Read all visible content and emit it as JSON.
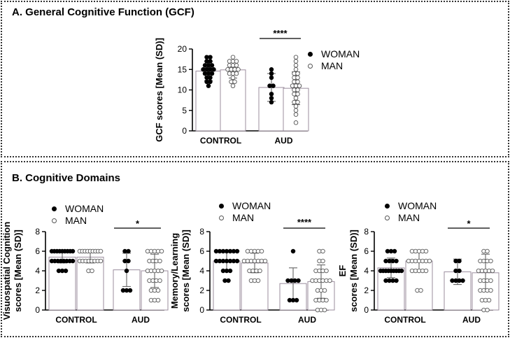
{
  "panel_a": {
    "title": "A. General Cognitive Function (GCF)"
  },
  "panel_b": {
    "title": "B. Cognitive Domains"
  },
  "legend": {
    "woman": "WOMAN",
    "man": "MAN"
  },
  "colors": {
    "woman": "#000000",
    "man": "#ffffff",
    "bar_edge": "#9b8d9e"
  },
  "chart_data": [
    {
      "type": "bar",
      "panel": "A",
      "ylabel": "GCF scores [Mean (SD)]",
      "categories": [
        "CONTROL",
        "AUD"
      ],
      "ylim": [
        0,
        20
      ],
      "yticks": [
        0,
        5,
        10,
        15,
        20
      ],
      "significance": {
        "label": "****",
        "category": "AUD"
      },
      "series": [
        {
          "name": "WOMAN",
          "means": [
            14.6,
            10.6
          ],
          "sd": [
            2.3,
            3.4
          ],
          "points": [
            [
              18,
              18,
              17,
              17,
              16,
              16,
              16,
              15,
              15,
              15,
              15,
              14,
              14,
              14,
              13,
              13,
              12,
              12,
              11
            ],
            [
              15,
              14,
              13,
              11,
              11,
              9,
              8,
              7
            ]
          ]
        },
        {
          "name": "MAN",
          "means": [
            14.9,
            10.4
          ],
          "sd": [
            2.0,
            4.0
          ],
          "points": [
            [
              18,
              17,
              17,
              17,
              16,
              16,
              16,
              15,
              15,
              15,
              15,
              14,
              14,
              14,
              13,
              12,
              12,
              11
            ],
            [
              18,
              17,
              16,
              15,
              14,
              14,
              13,
              13,
              12,
              12,
              11,
              11,
              11,
              10,
              10,
              9,
              9,
              8,
              7,
              7,
              6,
              5,
              4,
              2
            ]
          ]
        }
      ]
    },
    {
      "type": "bar",
      "panel": "B1",
      "ylabel": "Visuospatial Cognition scores [Mean (SD)]",
      "categories": [
        "CONTROL",
        "AUD"
      ],
      "ylim": [
        0,
        8
      ],
      "yticks": [
        0,
        2,
        4,
        6,
        8
      ],
      "significance": {
        "label": "*",
        "category": "AUD"
      },
      "series": [
        {
          "name": "WOMAN",
          "means": [
            5.4,
            4.1
          ],
          "sd": [
            0.6,
            1.7
          ],
          "points": [
            [
              6,
              6,
              6,
              6,
              6,
              6,
              6,
              6,
              6,
              5,
              5,
              5,
              5,
              5,
              5,
              5,
              5,
              4,
              4,
              4
            ],
            [
              6,
              6,
              5,
              5,
              4,
              2,
              2,
              2
            ]
          ]
        },
        {
          "name": "MAN",
          "means": [
            5.4,
            4.0
          ],
          "sd": [
            0.6,
            1.7
          ],
          "points": [
            [
              6,
              6,
              6,
              6,
              6,
              6,
              6,
              6,
              6,
              5,
              5,
              5,
              5,
              5,
              5,
              5,
              5,
              4,
              4
            ],
            [
              6,
              6,
              6,
              6,
              6,
              5,
              5,
              5,
              5,
              4,
              4,
              4,
              4,
              4,
              3,
              3,
              3,
              3,
              2,
              2,
              2,
              1,
              1,
              1
            ]
          ]
        }
      ]
    },
    {
      "type": "bar",
      "panel": "B2",
      "ylabel": "Memory/Learning scores [Mean (SD)]",
      "categories": [
        "CONTROL",
        "AUD"
      ],
      "ylim": [
        0,
        8
      ],
      "yticks": [
        0,
        2,
        4,
        6,
        8
      ],
      "significance": {
        "label": "****",
        "category": "AUD"
      },
      "series": [
        {
          "name": "WOMAN",
          "means": [
            5.0,
            2.7
          ],
          "sd": [
            0.9,
            1.6
          ],
          "points": [
            [
              6,
              6,
              6,
              6,
              6,
              6,
              6,
              5,
              5,
              5,
              5,
              5,
              5,
              5,
              4,
              4,
              4,
              3,
              3
            ],
            [
              6,
              3,
              3,
              3,
              3,
              1,
              1,
              1
            ]
          ]
        },
        {
          "name": "MAN",
          "means": [
            4.8,
            2.9
          ],
          "sd": [
            1.0,
            1.7
          ],
          "points": [
            [
              6,
              6,
              6,
              6,
              6,
              5,
              5,
              5,
              5,
              5,
              5,
              5,
              4,
              4,
              4,
              4,
              3,
              3,
              3
            ],
            [
              6,
              6,
              5,
              5,
              4,
              4,
              4,
              4,
              3,
              3,
              3,
              3,
              3,
              3,
              2,
              2,
              2,
              1,
              1,
              1,
              1,
              0,
              0,
              0
            ]
          ]
        }
      ]
    },
    {
      "type": "bar",
      "panel": "B3",
      "ylabel": "EF scores [Mean (SD)]",
      "categories": [
        "CONTROL",
        "AUD"
      ],
      "ylim": [
        0,
        8
      ],
      "yticks": [
        0,
        2,
        4,
        6,
        8
      ],
      "significance": {
        "label": "*",
        "category": "AUD"
      },
      "series": [
        {
          "name": "WOMAN",
          "means": [
            4.3,
            3.9
          ],
          "sd": [
            1.0,
            1.3
          ],
          "points": [
            [
              6,
              6,
              6,
              5,
              5,
              5,
              5,
              4,
              4,
              4,
              4,
              4,
              4,
              4,
              4,
              4,
              3,
              3,
              3,
              3
            ],
            [
              5,
              5,
              4,
              4,
              3,
              3,
              3,
              3
            ]
          ]
        },
        {
          "name": "MAN",
          "means": [
            5.0,
            3.8
          ],
          "sd": [
            0.9,
            1.9
          ],
          "points": [
            [
              6,
              6,
              6,
              6,
              6,
              5,
              5,
              5,
              5,
              5,
              5,
              5,
              4,
              4,
              4,
              4,
              4,
              2,
              2
            ],
            [
              6,
              6,
              5,
              5,
              5,
              5,
              4,
              4,
              4,
              4,
              4,
              3,
              3,
              3,
              3,
              2,
              2,
              2,
              2,
              1,
              1,
              1,
              0,
              0
            ]
          ]
        }
      ]
    }
  ]
}
